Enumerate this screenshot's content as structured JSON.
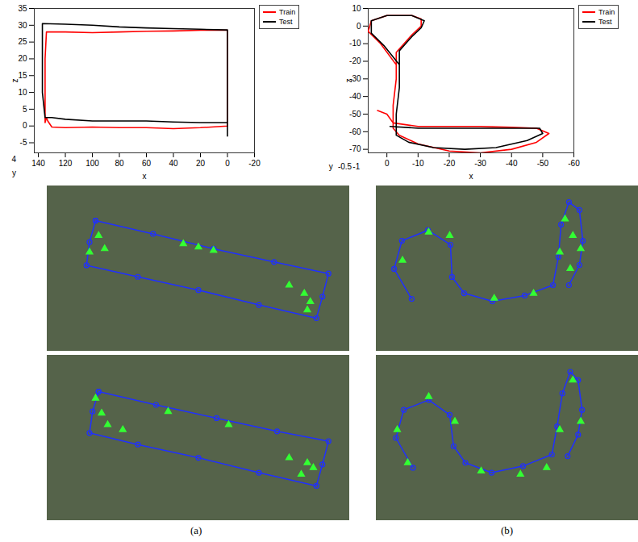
{
  "chart_data": [
    {
      "type": "line",
      "xlabel": "x",
      "ylabel": "z",
      "xlim": [
        143,
        -20
      ],
      "xticks": [
        140,
        120,
        100,
        80,
        60,
        40,
        20,
        0,
        -20
      ],
      "ylim": [
        -8,
        35
      ],
      "yticks": [
        -5,
        0,
        5,
        10,
        15,
        20,
        25,
        30,
        35
      ],
      "legend": "top-right",
      "annotations": [
        {
          "text": "4",
          "x": 158,
          "y": -10
        },
        {
          "text": "y",
          "x": 158,
          "y": -14
        }
      ],
      "series": [
        {
          "name": "Train",
          "color": "#ff0000",
          "x": [
            0,
            20,
            40,
            60,
            80,
            100,
            120,
            130,
            133,
            134,
            135,
            135,
            135,
            134,
            120,
            100,
            80,
            60,
            40,
            20,
            0,
            0,
            0
          ],
          "values": [
            0,
            -0.5,
            -0.8,
            -0.5,
            -0.5,
            -0.3,
            -0.5,
            -0.3,
            1.5,
            2.5,
            1,
            10,
            20,
            28,
            28,
            27.8,
            28,
            28.2,
            28.3,
            28.5,
            28.5,
            15,
            0
          ]
        },
        {
          "name": "Test",
          "color": "#000000",
          "x": [
            0,
            20,
            40,
            60,
            80,
            100,
            120,
            130,
            135,
            137,
            137,
            137,
            120,
            100,
            80,
            60,
            40,
            20,
            0,
            0,
            0
          ],
          "values": [
            1,
            1,
            1.2,
            1.5,
            1.5,
            1.5,
            2,
            2.5,
            2.5,
            10,
            20,
            30.5,
            30.3,
            30,
            29.5,
            29.2,
            29,
            28.8,
            28.6,
            10,
            -3
          ]
        }
      ]
    },
    {
      "type": "line",
      "xlabel": "x",
      "ylabel": "z",
      "xlim": [
        6,
        -60
      ],
      "xticks": [
        0,
        -10,
        -20,
        -30,
        -40,
        -50,
        -60
      ],
      "ylim": [
        -72,
        10
      ],
      "yticks": [
        -70,
        -60,
        -50,
        -40,
        -30,
        -20,
        -10,
        0,
        10
      ],
      "legend": "top-right",
      "annotations": [
        {
          "text": "y",
          "x": 18,
          "y": -80
        },
        {
          "text": "-0.5",
          "x": 13.5,
          "y": -80
        },
        {
          "text": "-1",
          "x": 9.8,
          "y": -80
        }
      ],
      "series": [
        {
          "name": "Train",
          "color": "#ff0000",
          "x": [
            3,
            0,
            -2,
            -10,
            -20,
            -30,
            -40,
            -48,
            -52,
            -48,
            -40,
            -30,
            -20,
            -10,
            -4,
            -2,
            -2,
            -3,
            -3,
            2,
            6,
            5,
            0,
            -8,
            -11,
            -11,
            -8,
            -3,
            -3
          ],
          "values": [
            -48,
            -50,
            -55,
            -57,
            -57,
            -57,
            -57.5,
            -58,
            -61,
            -66,
            -70,
            -72,
            -71,
            -67,
            -62,
            -58,
            -45,
            -30,
            -22,
            -10,
            -3,
            3,
            6,
            6,
            4,
            0,
            -5,
            -15,
            -22
          ]
        },
        {
          "name": "Test",
          "color": "#000000",
          "x": [
            -1,
            -10,
            -20,
            -30,
            -40,
            -49,
            -50,
            -45,
            -35,
            -25,
            -15,
            -7,
            -3,
            -3,
            -4,
            -4,
            1,
            5,
            5,
            0,
            -8,
            -12,
            -11,
            -8,
            -4,
            -4
          ],
          "values": [
            -57,
            -58,
            -58,
            -58,
            -58,
            -58,
            -61,
            -65,
            -69,
            -70,
            -69,
            -66,
            -62,
            -50,
            -35,
            -22,
            -11,
            -4,
            3,
            6,
            6,
            3,
            -1,
            -6,
            -14,
            -22
          ]
        }
      ]
    },
    {
      "type": "scatter",
      "tick_labels": false,
      "xlim": [
        0,
        100
      ],
      "ylim": [
        0,
        100
      ],
      "series": [
        {
          "color": "#2030ff",
          "marker": "circle",
          "line_style": "solid",
          "x": [
            16,
            35,
            55,
            75,
            93,
            91,
            89,
            70,
            50,
            30,
            13,
            14,
            16
          ],
          "values": [
            79,
            71,
            62,
            54,
            47,
            33,
            20,
            28,
            37,
            45,
            52,
            66,
            79
          ]
        },
        {
          "color": "#33ff33",
          "marker": "triangle",
          "x": [
            17,
            19,
            45,
            50,
            55,
            80,
            85,
            87,
            86,
            14
          ],
          "values": [
            70,
            62,
            65,
            63,
            61,
            40,
            35,
            30,
            25,
            60
          ]
        }
      ]
    },
    {
      "type": "scatter",
      "tick_labels": false,
      "xlim": [
        0,
        100
      ],
      "ylim": [
        0,
        100
      ],
      "series": [
        {
          "color": "#2030ff",
          "marker": "circle",
          "line_style": "solid",
          "x": [
            13.5,
            6.8,
            9.8,
            19.7,
            28.3,
            28.9,
            33.5,
            44.3,
            56.6,
            67.4,
            69.5,
            70.5,
            73.5,
            77.5,
            78.8,
            77.5,
            73.5
          ],
          "values": [
            31.7,
            49.8,
            66.8,
            73.2,
            64.4,
            44.9,
            35.1,
            30.2,
            33.7,
            40,
            57.1,
            76.6,
            90.2,
            85.4,
            66.8,
            52.2,
            40
          ]
        },
        {
          "color": "#33ff33",
          "marker": "triangle",
          "x": [
            72,
            75,
            74,
            70,
            28,
            20,
            10,
            45,
            60,
            78
          ],
          "values": [
            80,
            70,
            50,
            60,
            70,
            72,
            55,
            32,
            35,
            62
          ]
        }
      ]
    },
    {
      "type": "scatter",
      "tick_labels": false,
      "xlim": [
        0,
        100
      ],
      "ylim": [
        0,
        100
      ],
      "series": [
        {
          "color": "#2030ff",
          "marker": "circle",
          "line_style": "solid",
          "x": [
            17,
            36,
            56,
            76,
            93,
            91,
            89,
            70,
            50,
            30,
            14,
            15,
            17
          ],
          "values": [
            78,
            70,
            62,
            54,
            48,
            34,
            21,
            29,
            38,
            46,
            53,
            66,
            78
          ]
        },
        {
          "color": "#33ff33",
          "marker": "triangle",
          "x": [
            16,
            20,
            25,
            40,
            60,
            80,
            86,
            88,
            84,
            18
          ],
          "values": [
            74,
            58,
            55,
            66,
            58,
            38,
            35,
            32,
            28,
            65
          ]
        }
      ]
    },
    {
      "type": "scatter",
      "tick_labels": false,
      "xlim": [
        0,
        100
      ],
      "ylim": [
        0,
        100
      ],
      "series": [
        {
          "color": "#2030ff",
          "marker": "circle",
          "line_style": "solid",
          "x": [
            14,
            7.5,
            10.5,
            20,
            28,
            29.5,
            34,
            44,
            56,
            67,
            69,
            71,
            74,
            77,
            78.5,
            77,
            73
          ],
          "values": [
            32,
            50,
            67,
            73,
            64,
            45,
            35,
            29,
            33,
            40,
            57,
            77,
            90,
            85,
            67,
            52,
            39
          ]
        },
        {
          "color": "#33ff33",
          "marker": "triangle",
          "x": [
            12,
            8,
            20,
            30,
            40,
            55,
            65,
            70,
            75,
            78
          ],
          "values": [
            35,
            55,
            75,
            60,
            30,
            28,
            32,
            55,
            85,
            60
          ]
        }
      ]
    }
  ],
  "captions": [
    "(a)",
    "(b)"
  ]
}
